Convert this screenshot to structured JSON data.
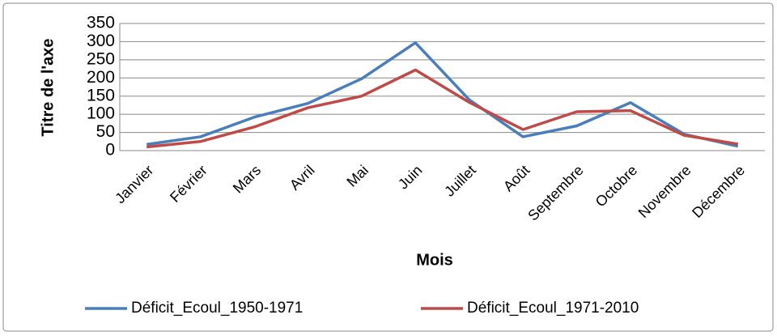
{
  "chart_data": {
    "type": "line",
    "x_label": "Mois",
    "y_label": "Titre de l'axe",
    "categories": [
      "Janvier",
      "Février",
      "Mars",
      "Avril",
      "Mai",
      "Juin",
      "Juillet",
      "Août",
      "Septembre",
      "Octobre",
      "Novembre",
      "Décembre"
    ],
    "series": [
      {
        "name": "Déficit_Ecoul_1950-1971",
        "color": "#4a7ebb",
        "values": [
          17,
          38,
          92,
          130,
          198,
          297,
          140,
          38,
          68,
          132,
          45,
          12
        ]
      },
      {
        "name": "Déficit_Ecoul_1971-2010",
        "color": "#be4b48",
        "values": [
          10,
          25,
          65,
          118,
          150,
          222,
          133,
          58,
          107,
          110,
          42,
          18
        ]
      }
    ],
    "ylim": [
      0,
      350
    ],
    "yticks": [
      0,
      50,
      100,
      150,
      200,
      250,
      300,
      350
    ],
    "grid": true,
    "legend": "bottom"
  }
}
